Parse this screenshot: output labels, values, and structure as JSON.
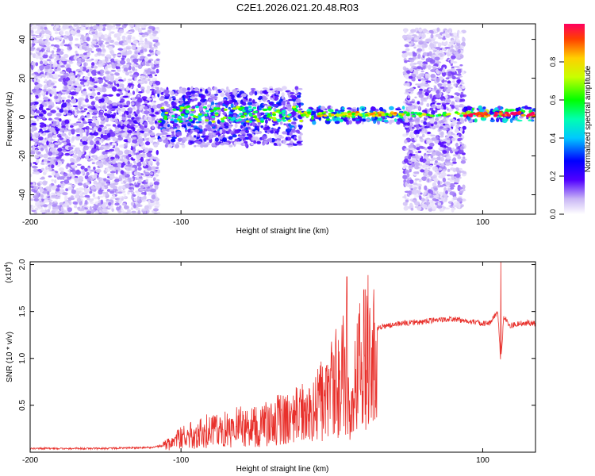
{
  "title": "C2E1.2026.021.20.48.R03",
  "chart_data": [
    {
      "type": "heatmap",
      "xlabel": "Height of straight line (km)",
      "ylabel": "Frequency (Hz)",
      "xlim": [
        -200,
        135
      ],
      "ylim": [
        -50,
        48
      ],
      "xticks": [
        "-200",
        "-100",
        "100"
      ],
      "xtick_values": [
        -200,
        -100,
        100
      ],
      "yticks": [
        "-40",
        "-20",
        "0",
        "20",
        "40"
      ],
      "ytick_values": [
        -40,
        -20,
        0,
        20,
        40
      ],
      "colorbar": {
        "label": "Normalized spectral amplitude",
        "ticks": [
          "0.0",
          "0.2",
          "0.4",
          "0.6",
          "0.8"
        ],
        "tick_values": [
          0.0,
          0.2,
          0.4,
          0.6,
          0.8
        ],
        "range": [
          0,
          1
        ]
      },
      "regions": [
        {
          "x": [
            -200,
            -115
          ],
          "y": [
            -50,
            48
          ],
          "level": 0.15
        },
        {
          "x": [
            -115,
            -20
          ],
          "y": [
            -15,
            15
          ],
          "level": 0.3
        },
        {
          "x": [
            -20,
            48
          ],
          "y": [
            -3,
            5
          ],
          "level": 0.55
        },
        {
          "x": [
            48,
            88
          ],
          "y": [
            -48,
            45
          ],
          "level": 0.15
        },
        {
          "x": [
            88,
            135
          ],
          "y": [
            -2,
            5
          ],
          "level": 0.65
        }
      ]
    },
    {
      "type": "line",
      "xlabel": "Height of straight line (km)",
      "ylabel": "SNR (10 * v/v)",
      "y_multiplier_label": "(x10",
      "y_multiplier_exp": "4",
      "xlim": [
        -200,
        135
      ],
      "ylim": [
        0,
        2.03
      ],
      "xticks": [
        "-200",
        "-100",
        "100"
      ],
      "xtick_values": [
        -200,
        -100,
        100
      ],
      "yticks": [
        "0.5",
        "1.0",
        "1.5",
        "2.0"
      ],
      "ytick_values": [
        0.5,
        1.0,
        1.5,
        2.0
      ],
      "color": "#e8302b",
      "series": [
        {
          "x": [
            -200,
            -150,
            -120,
            -112,
            -105,
            -100,
            -95,
            -90,
            -85,
            -80,
            -75,
            -70,
            -65,
            -60,
            -55,
            -50,
            -45,
            -40,
            -35,
            -30,
            -25,
            -20,
            -15,
            -10,
            -5,
            0,
            5,
            8,
            10,
            12,
            15,
            20,
            25,
            30,
            40,
            50,
            60,
            70,
            80,
            90,
            100,
            105,
            110,
            112,
            114,
            118,
            125,
            130,
            135
          ],
          "y": [
            0.04,
            0.04,
            0.05,
            0.07,
            0.12,
            0.18,
            0.2,
            0.22,
            0.25,
            0.28,
            0.28,
            0.3,
            0.32,
            0.33,
            0.3,
            0.35,
            0.35,
            0.36,
            0.4,
            0.4,
            0.45,
            0.5,
            0.55,
            0.6,
            0.7,
            0.8,
            0.9,
            0.95,
            1.0,
            0.3,
            0.95,
            1.1,
            1.25,
            1.32,
            1.36,
            1.38,
            1.39,
            1.41,
            1.42,
            1.4,
            1.37,
            1.38,
            1.5,
            0.95,
            1.45,
            1.35,
            1.37,
            1.38,
            1.37
          ]
        }
      ],
      "spikes": [
        {
          "x": 10,
          "y": 1.87
        },
        {
          "x": 112,
          "y": 2.03
        }
      ]
    }
  ]
}
